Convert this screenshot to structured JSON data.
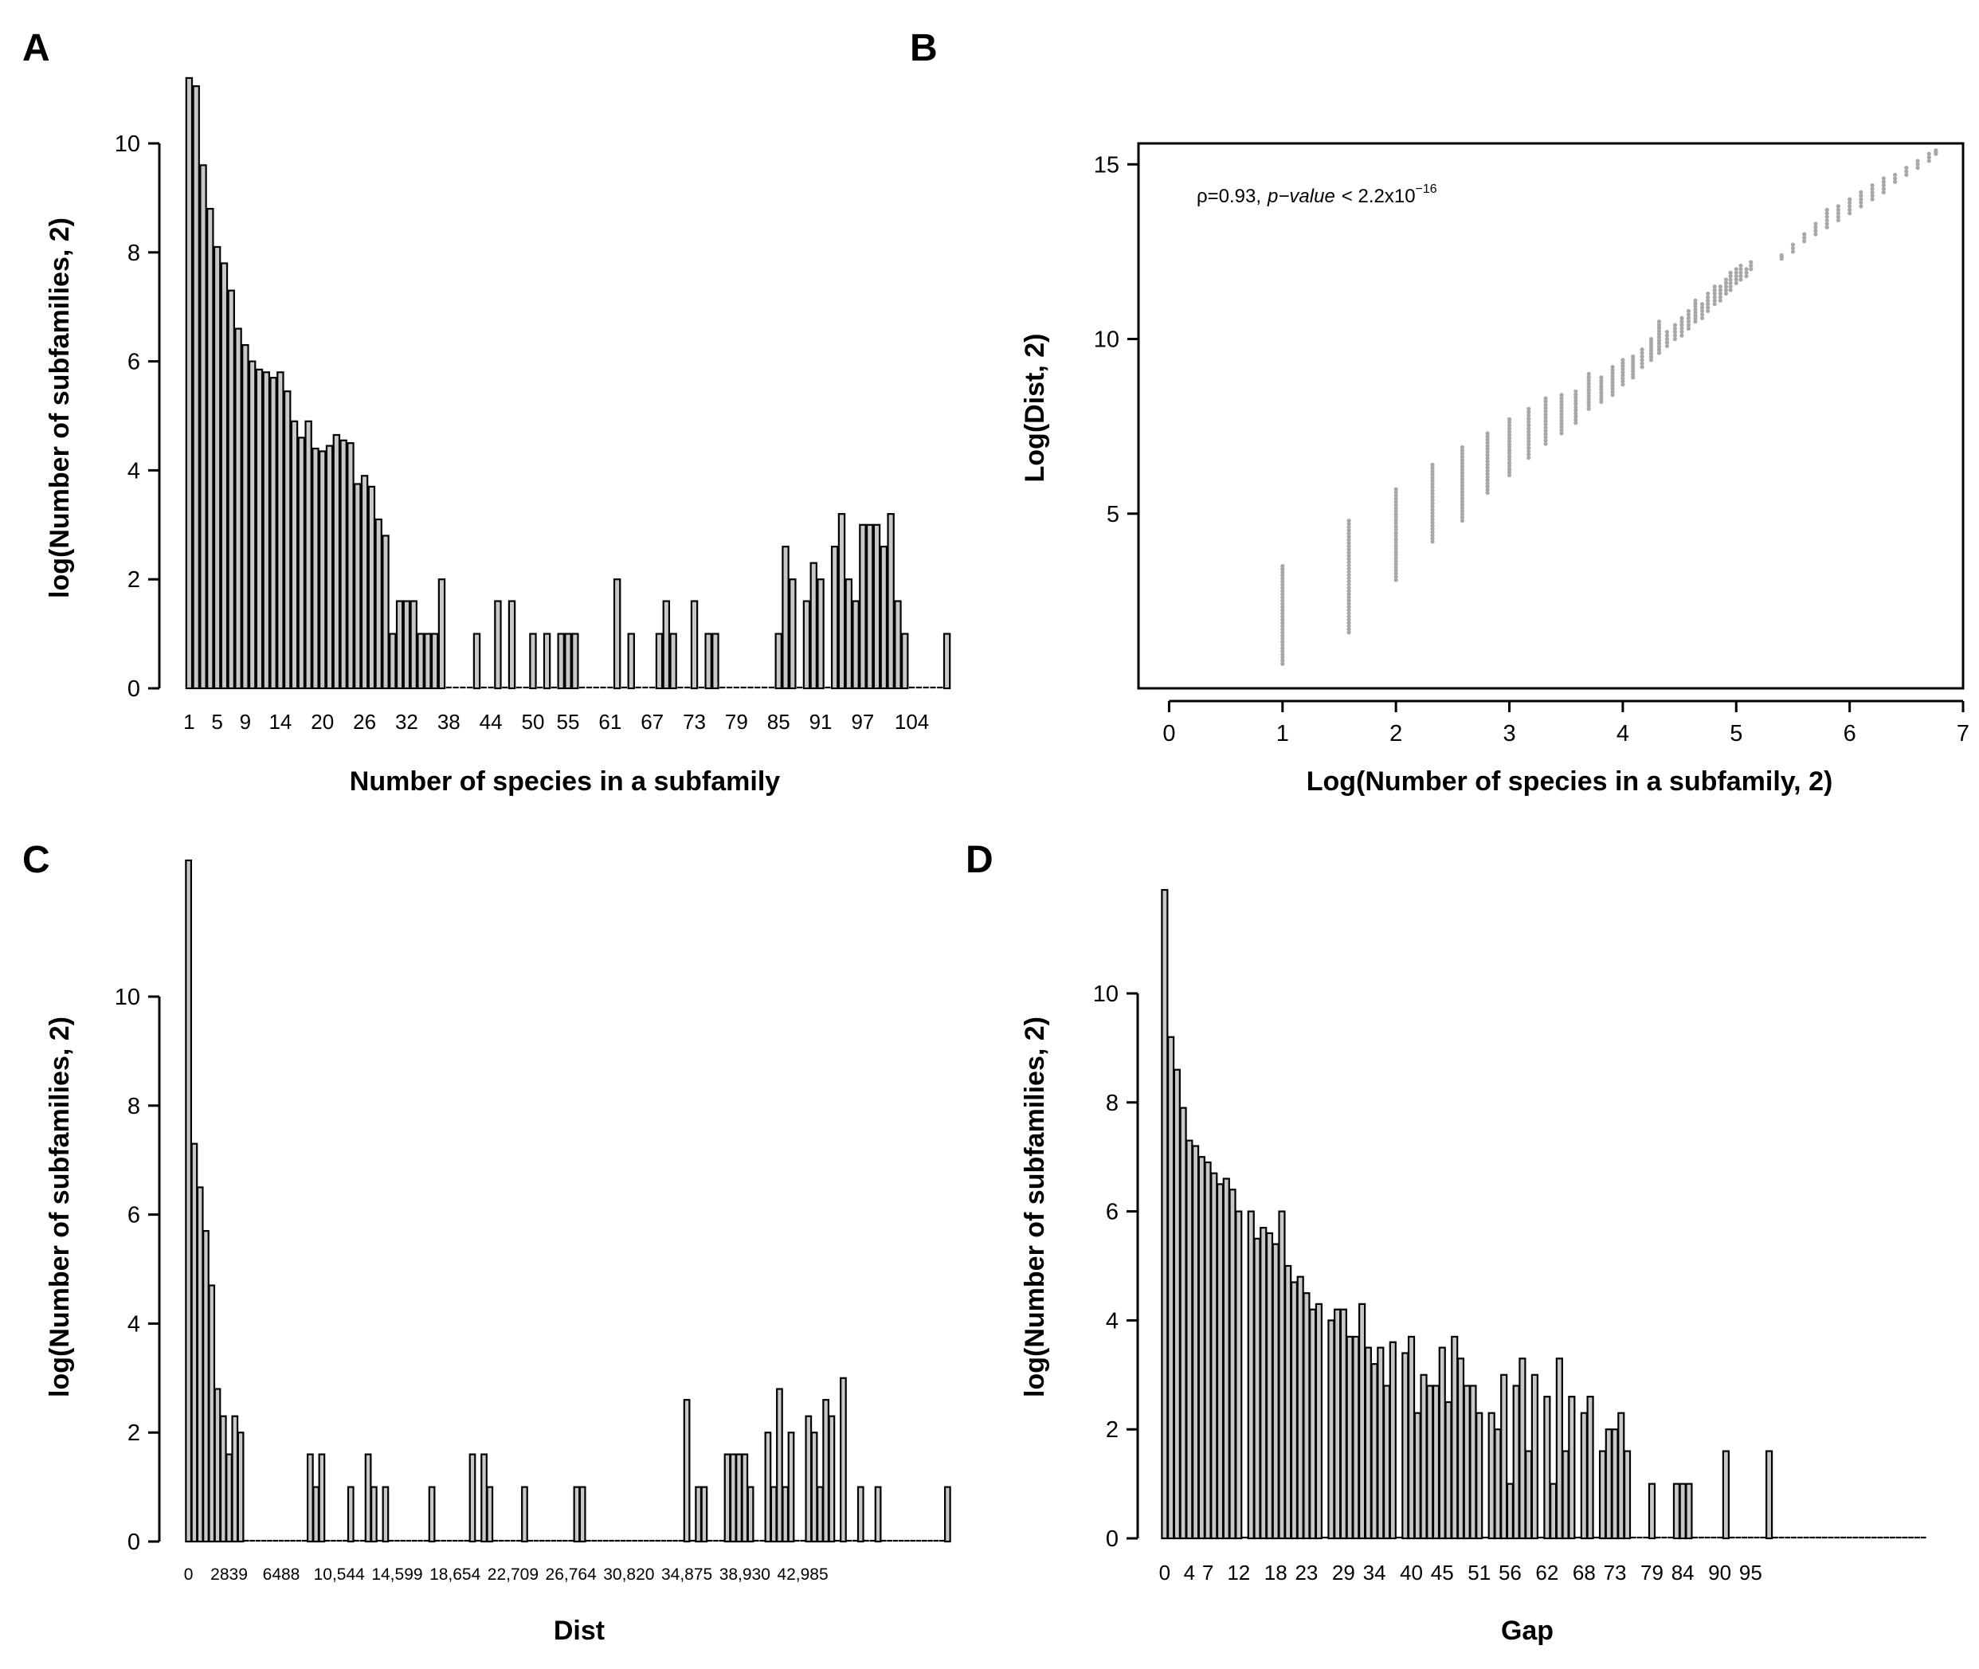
{
  "figure": {
    "panels": [
      {
        "id": "A",
        "label": "A"
      },
      {
        "id": "B",
        "label": "B"
      },
      {
        "id": "C",
        "label": "C"
      },
      {
        "id": "D",
        "label": "D"
      }
    ]
  },
  "chart_data": [
    {
      "panel": "A",
      "type": "bar",
      "xlabel": "Number of species in a subfamily",
      "ylabel": "log(Number of subfamilies, 2)",
      "ylim": [
        0,
        11.5
      ],
      "yticks": [
        "0",
        "2",
        "4",
        "6",
        "8",
        "10"
      ],
      "tick_labels": [
        "1",
        "5",
        "9",
        "14",
        "20",
        "26",
        "32",
        "38",
        "44",
        "50",
        "55",
        "61",
        "67",
        "73",
        "79",
        "85",
        "91",
        "97",
        "104"
      ],
      "tick_label_index": [
        0,
        4,
        8,
        13,
        19,
        25,
        31,
        37,
        43,
        49,
        54,
        60,
        66,
        72,
        78,
        84,
        90,
        96,
        103
      ],
      "values": [
        11.2,
        11.05,
        9.6,
        8.8,
        8.1,
        7.8,
        7.3,
        6.6,
        6.3,
        6.0,
        5.85,
        5.8,
        5.7,
        5.8,
        5.45,
        4.9,
        4.6,
        4.9,
        4.4,
        4.35,
        4.45,
        4.65,
        4.55,
        4.5,
        3.75,
        3.9,
        3.7,
        3.1,
        2.8,
        1.0,
        1.6,
        1.6,
        1.6,
        1.0,
        1.0,
        1.0,
        2.0,
        0,
        0,
        0,
        0,
        1.0,
        0,
        0,
        1.6,
        0,
        1.6,
        0,
        0,
        1.0,
        0,
        1.0,
        0,
        1.0,
        1.0,
        1.0,
        0,
        0,
        0,
        0,
        0,
        2.0,
        0,
        1.0,
        0,
        0,
        0,
        1.0,
        1.6,
        1.0,
        0,
        0,
        1.6,
        0,
        1.0,
        1.0,
        0,
        0,
        0,
        0,
        0,
        0,
        0,
        0,
        1.0,
        2.6,
        2.0,
        0,
        1.6,
        2.3,
        2.0,
        0,
        2.6,
        3.2,
        2.0,
        1.6,
        3.0,
        3.0,
        3.0,
        2.6,
        3.2,
        1.6,
        1.0,
        0,
        0,
        0,
        0,
        0,
        1.0
      ]
    },
    {
      "panel": "B",
      "type": "scatter",
      "xlabel": "Log(Number of species in a subfamily, 2)",
      "ylabel": "Log(Dist, 2)",
      "xlim": [
        -0.27,
        7.0
      ],
      "ylim": [
        0,
        15.6
      ],
      "xticks": [
        "0",
        "1",
        "2",
        "3",
        "4",
        "5",
        "6",
        "7"
      ],
      "yticks": [
        "5",
        "10",
        "15"
      ],
      "annotation": {
        "rho": "ρ=0.93,",
        "pvalue_label": "p−value",
        "lt": "< 2.2x10",
        "exponent": "−16"
      },
      "columns": [
        {
          "x": 1.0,
          "ymin": 0.7,
          "ymax": 3.5
        },
        {
          "x": 1.585,
          "ymin": 1.6,
          "ymax": 4.8
        },
        {
          "x": 2.0,
          "ymin": 3.1,
          "ymax": 5.7
        },
        {
          "x": 2.322,
          "ymin": 4.2,
          "ymax": 6.4
        },
        {
          "x": 2.585,
          "ymin": 4.8,
          "ymax": 6.9
        },
        {
          "x": 2.807,
          "ymin": 5.6,
          "ymax": 7.3
        },
        {
          "x": 3.0,
          "ymin": 6.1,
          "ymax": 7.7
        },
        {
          "x": 3.17,
          "ymin": 6.6,
          "ymax": 8.0
        },
        {
          "x": 3.32,
          "ymin": 7.0,
          "ymax": 8.3
        },
        {
          "x": 3.46,
          "ymin": 7.3,
          "ymax": 8.4
        },
        {
          "x": 3.585,
          "ymin": 7.6,
          "ymax": 8.5
        },
        {
          "x": 3.7,
          "ymin": 8.0,
          "ymax": 9.0
        },
        {
          "x": 3.81,
          "ymin": 8.2,
          "ymax": 8.9
        },
        {
          "x": 3.91,
          "ymin": 8.4,
          "ymax": 9.2
        },
        {
          "x": 4.0,
          "ymin": 8.7,
          "ymax": 9.4
        },
        {
          "x": 4.09,
          "ymin": 8.9,
          "ymax": 9.5
        },
        {
          "x": 4.17,
          "ymin": 9.2,
          "ymax": 9.7
        },
        {
          "x": 4.25,
          "ymin": 9.4,
          "ymax": 10.0
        },
        {
          "x": 4.32,
          "ymin": 9.6,
          "ymax": 10.5
        },
        {
          "x": 4.39,
          "ymin": 9.8,
          "ymax": 10.2
        },
        {
          "x": 4.46,
          "ymin": 10.0,
          "ymax": 10.4
        },
        {
          "x": 4.52,
          "ymin": 10.1,
          "ymax": 10.6
        },
        {
          "x": 4.58,
          "ymin": 10.3,
          "ymax": 10.8
        },
        {
          "x": 4.64,
          "ymin": 10.5,
          "ymax": 11.1
        },
        {
          "x": 4.7,
          "ymin": 10.6,
          "ymax": 11.0
        },
        {
          "x": 4.75,
          "ymin": 10.8,
          "ymax": 11.3
        },
        {
          "x": 4.81,
          "ymin": 11.0,
          "ymax": 11.5
        },
        {
          "x": 4.86,
          "ymin": 11.1,
          "ymax": 11.5
        },
        {
          "x": 4.91,
          "ymin": 11.3,
          "ymax": 11.7
        },
        {
          "x": 4.95,
          "ymin": 11.4,
          "ymax": 11.9
        },
        {
          "x": 5.0,
          "ymin": 11.6,
          "ymax": 12.0
        },
        {
          "x": 5.04,
          "ymin": 11.7,
          "ymax": 12.1
        },
        {
          "x": 5.09,
          "ymin": 11.8,
          "ymax": 12.0
        },
        {
          "x": 5.13,
          "ymin": 12.0,
          "ymax": 12.2
        },
        {
          "x": 5.4,
          "ymin": 12.3,
          "ymax": 12.4
        },
        {
          "x": 5.5,
          "ymin": 12.5,
          "ymax": 12.7
        },
        {
          "x": 5.6,
          "ymin": 12.8,
          "ymax": 13.0
        },
        {
          "x": 5.7,
          "ymin": 13.0,
          "ymax": 13.3
        },
        {
          "x": 5.8,
          "ymin": 13.2,
          "ymax": 13.7
        },
        {
          "x": 5.9,
          "ymin": 13.4,
          "ymax": 13.8
        },
        {
          "x": 6.0,
          "ymin": 13.6,
          "ymax": 14.0
        },
        {
          "x": 6.1,
          "ymin": 13.8,
          "ymax": 14.2
        },
        {
          "x": 6.2,
          "ymin": 14.0,
          "ymax": 14.4
        },
        {
          "x": 6.3,
          "ymin": 14.2,
          "ymax": 14.6
        },
        {
          "x": 6.4,
          "ymin": 14.5,
          "ymax": 14.7
        },
        {
          "x": 6.5,
          "ymin": 14.7,
          "ymax": 14.9
        },
        {
          "x": 6.6,
          "ymin": 14.9,
          "ymax": 15.1
        },
        {
          "x": 6.7,
          "ymin": 15.1,
          "ymax": 15.3
        },
        {
          "x": 6.76,
          "ymin": 15.3,
          "ymax": 15.4
        }
      ]
    },
    {
      "panel": "C",
      "type": "bar",
      "xlabel": "Dist",
      "ylabel": "log(Number of subfamilies, 2)",
      "ylim": [
        0,
        12.5
      ],
      "yticks": [
        "0",
        "2",
        "4",
        "6",
        "8",
        "10"
      ],
      "tick_labels": [
        "0",
        "2839",
        "6488",
        "10,544",
        "14,599",
        "18,654",
        "22,709",
        "26,764",
        "30,820",
        "34,875",
        "38,930",
        "42,985"
      ],
      "tick_label_index": [
        0,
        7,
        16,
        26,
        36,
        46,
        56,
        66,
        76,
        86,
        96,
        106
      ],
      "values": [
        12.5,
        7.3,
        6.5,
        5.7,
        4.7,
        2.8,
        2.3,
        1.6,
        2.3,
        2.0,
        0,
        0,
        0,
        0,
        0,
        0,
        0,
        0,
        0,
        0,
        0,
        1.6,
        1.0,
        1.6,
        0,
        0,
        0,
        0,
        1.0,
        0,
        0,
        1.6,
        1.0,
        0,
        1.0,
        0,
        0,
        0,
        0,
        0,
        0,
        0,
        1.0,
        0,
        0,
        0,
        0,
        0,
        0,
        1.6,
        0,
        1.6,
        1.0,
        0,
        0,
        0,
        0,
        0,
        1.0,
        0,
        0,
        0,
        0,
        0,
        0,
        0,
        0,
        1.0,
        1.0,
        0,
        0,
        0,
        0,
        0,
        0,
        0,
        0,
        0,
        0,
        0,
        0,
        0,
        0,
        0,
        0,
        0,
        2.6,
        0,
        1.0,
        1.0,
        0,
        0,
        0,
        1.6,
        1.6,
        1.6,
        1.6,
        1.0,
        0,
        0,
        2.0,
        1.0,
        2.8,
        1.0,
        2.0,
        0,
        0,
        2.3,
        2.0,
        1.0,
        2.6,
        2.3,
        0,
        3.0,
        0,
        0,
        1.0,
        0,
        0,
        1.0,
        0,
        0,
        0,
        0,
        0,
        0,
        0,
        0,
        0,
        0,
        0,
        1.0
      ]
    },
    {
      "panel": "D",
      "type": "bar",
      "xlabel": "Gap",
      "ylabel": "log(Number of subfamilies, 2)",
      "ylim": [
        0,
        12.5
      ],
      "yticks": [
        "0",
        "2",
        "4",
        "6",
        "8",
        "10"
      ],
      "tick_labels": [
        "0",
        "4",
        "7",
        "12",
        "18",
        "23",
        "29",
        "34",
        "40",
        "45",
        "51",
        "56",
        "62",
        "68",
        "73",
        "79",
        "84",
        "90",
        "95"
      ],
      "tick_label_index": [
        0,
        4,
        7,
        12,
        18,
        23,
        29,
        34,
        40,
        45,
        51,
        56,
        62,
        68,
        73,
        79,
        84,
        90,
        95
      ],
      "values": [
        11.9,
        9.2,
        8.6,
        7.9,
        7.3,
        7.2,
        7.0,
        6.9,
        6.7,
        6.5,
        6.6,
        6.4,
        6.0,
        0,
        6.0,
        5.5,
        5.7,
        5.6,
        5.4,
        6.0,
        5.0,
        4.7,
        4.8,
        4.5,
        4.2,
        4.3,
        0,
        4.0,
        4.2,
        4.2,
        3.7,
        3.7,
        4.3,
        3.5,
        3.2,
        3.5,
        2.8,
        3.6,
        0,
        3.4,
        3.7,
        2.3,
        3.0,
        2.8,
        2.8,
        3.5,
        2.5,
        3.7,
        3.3,
        2.8,
        2.8,
        2.3,
        0,
        2.3,
        2.0,
        3.0,
        1.0,
        2.8,
        3.3,
        1.6,
        3.0,
        0,
        2.6,
        1.0,
        3.3,
        1.6,
        2.6,
        0,
        2.3,
        2.6,
        0,
        1.6,
        2.0,
        2.0,
        2.3,
        1.6,
        0,
        0,
        0,
        1.0,
        0,
        0,
        0,
        1.0,
        1.0,
        1.0,
        0,
        0,
        0,
        0,
        0,
        1.6,
        0,
        0,
        0,
        0,
        0,
        0,
        1.6,
        0,
        0,
        0,
        0,
        0,
        0,
        0,
        0,
        0,
        0,
        0,
        0,
        0,
        0,
        0,
        0,
        0,
        0,
        0,
        0,
        0,
        0,
        0,
        0,
        0
      ]
    }
  ]
}
